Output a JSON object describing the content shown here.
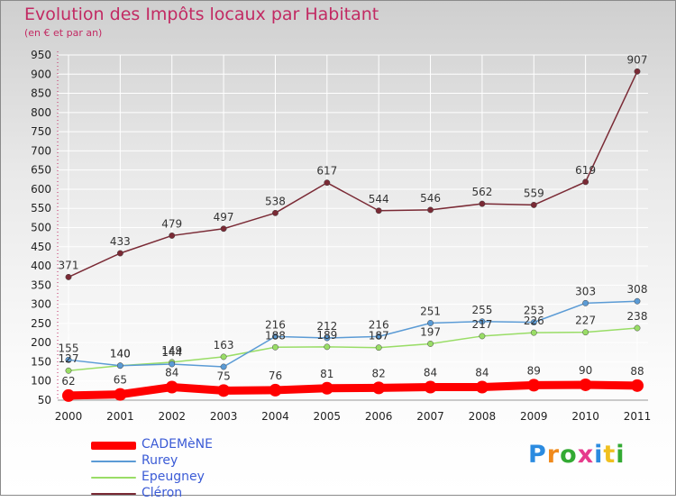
{
  "title": "Evolution des Impôts locaux par Habitant",
  "subtitle": "(en € et par an)",
  "chart_data": {
    "type": "line",
    "title": "Evolution des Impôts locaux par Habitant",
    "subtitle": "(en € et par an)",
    "xlabel": "",
    "ylabel": "",
    "x": [
      "2000",
      "2001",
      "2002",
      "2003",
      "2004",
      "2005",
      "2006",
      "2007",
      "2008",
      "2009",
      "2010",
      "2011"
    ],
    "ylim": [
      50,
      950
    ],
    "yticks": [
      50,
      100,
      150,
      200,
      250,
      300,
      350,
      400,
      450,
      500,
      550,
      600,
      650,
      700,
      750,
      800,
      850,
      900,
      950
    ],
    "grid": true,
    "legend_position": "bottom-left",
    "series": [
      {
        "name": "CADEMèNE",
        "color": "#ff0000",
        "values": [
          62,
          65,
          84,
          75,
          76,
          81,
          82,
          84,
          84,
          89,
          90,
          88
        ]
      },
      {
        "name": "Rurey",
        "color": "#5b9bd5",
        "values": [
          155,
          140,
          144,
          137,
          216,
          212,
          216,
          251,
          255,
          253,
          303,
          308
        ]
      },
      {
        "name": "Epeugney",
        "color": "#99dd66",
        "values": [
          127,
          140,
          149,
          163,
          188,
          189,
          187,
          197,
          217,
          226,
          227,
          238
        ]
      },
      {
        "name": "Cléron",
        "color": "#7a2a35",
        "values": [
          371,
          433,
          479,
          497,
          538,
          617,
          544,
          546,
          562,
          559,
          619,
          907
        ]
      }
    ],
    "data_labels": {
      "CADEMèNE": [
        "62",
        "65",
        "84",
        "75",
        "76",
        "81",
        "82",
        "84",
        "84",
        "89",
        "90",
        "88"
      ],
      "Rurey": [
        "155",
        "140",
        "144",
        "",
        "216",
        "212",
        "216",
        "251",
        "255",
        "253",
        "303",
        "308"
      ],
      "Epeugney": [
        "127",
        "140",
        "149",
        "163",
        "188",
        "189",
        "187",
        "197",
        "217",
        "226",
        "227",
        "238"
      ],
      "Cléron": [
        "371",
        "433",
        "479",
        "497",
        "538",
        "617",
        "544",
        "546",
        "562",
        "559",
        "619",
        "907"
      ]
    }
  },
  "legend": {
    "items": [
      {
        "label": "CADEMèNE",
        "color": "#ff0000"
      },
      {
        "label": "Rurey",
        "color": "#5b9bd5"
      },
      {
        "label": "Epeugney",
        "color": "#99dd66"
      },
      {
        "label": "Cléron",
        "color": "#7a2a35"
      }
    ]
  },
  "logo": {
    "text": "Proxiti",
    "letters": [
      "P",
      "r",
      "o",
      "x",
      "i",
      "t",
      "i"
    ],
    "colors": [
      "#2b8be0",
      "#f08a1c",
      "#33aa33",
      "#e63b8c",
      "#2b8be0",
      "#f0c020",
      "#33aa33"
    ]
  }
}
